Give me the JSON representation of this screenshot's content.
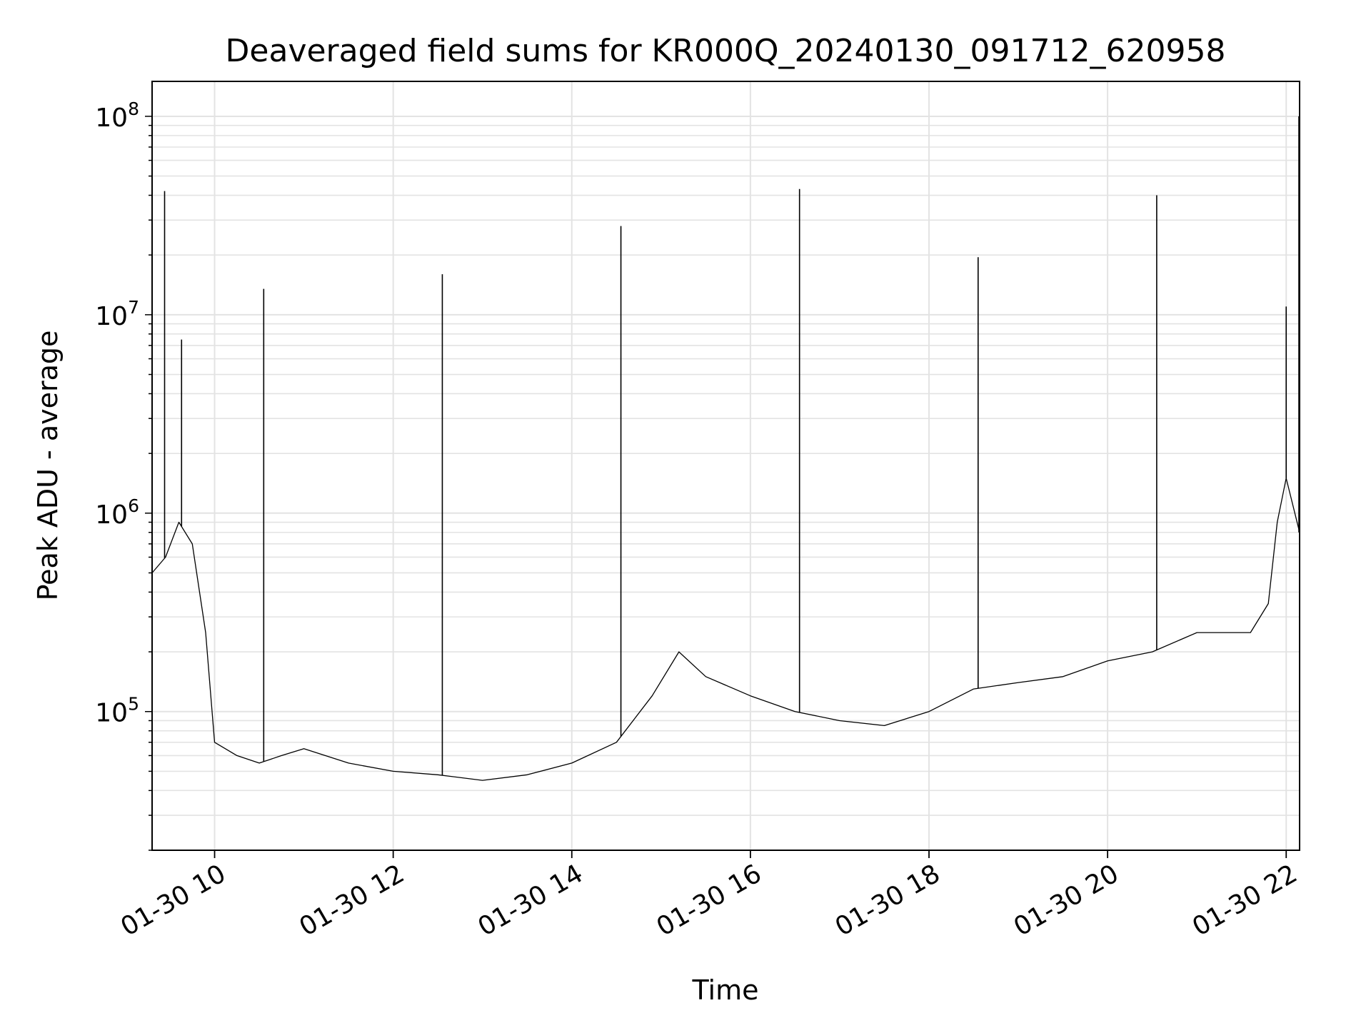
{
  "chart_data": {
    "type": "line",
    "title": "Deaveraged field sums for KR000Q_20240130_091712_620958",
    "xlabel": "Time",
    "ylabel": "Peak ADU - average",
    "x_range_hours": [
      9.3,
      22.15
    ],
    "yscale": "log",
    "ylim": [
      20000,
      150000000
    ],
    "x_ticks": [
      {
        "hour": 10,
        "label": "01-30 10"
      },
      {
        "hour": 12,
        "label": "01-30 12"
      },
      {
        "hour": 14,
        "label": "01-30 14"
      },
      {
        "hour": 16,
        "label": "01-30 16"
      },
      {
        "hour": 18,
        "label": "01-30 18"
      },
      {
        "hour": 20,
        "label": "01-30 20"
      },
      {
        "hour": 22,
        "label": "01-30 22"
      }
    ],
    "y_ticks": [
      {
        "value": 100000,
        "base": "10",
        "exp": "5"
      },
      {
        "value": 1000000,
        "base": "10",
        "exp": "6"
      },
      {
        "value": 10000000,
        "base": "10",
        "exp": "7"
      },
      {
        "value": 100000000,
        "base": "10",
        "exp": "8"
      }
    ],
    "grid": true,
    "line_color": "#000000",
    "series": [
      {
        "x": [
          9.3,
          9.45,
          9.6,
          9.75,
          9.9,
          10.0,
          10.25,
          10.5,
          10.75,
          11.0,
          11.5,
          12.0,
          12.5,
          13.0,
          13.5,
          14.0,
          14.5,
          14.9,
          15.2,
          15.5,
          16.0,
          16.5,
          17.0,
          17.5,
          18.0,
          18.5,
          19.0,
          19.5,
          20.0,
          20.5,
          21.0,
          21.3,
          21.6,
          21.8,
          21.9,
          22.0,
          22.15
        ],
        "y": [
          500000,
          600000,
          900000,
          700000,
          250000,
          70000,
          60000,
          55000,
          60000,
          65000,
          55000,
          50000,
          48000,
          45000,
          48000,
          55000,
          70000,
          120000,
          200000,
          150000,
          120000,
          100000,
          90000,
          85000,
          100000,
          130000,
          140000,
          150000,
          180000,
          200000,
          250000,
          250000,
          250000,
          350000,
          900000,
          1500000,
          800000
        ]
      }
    ],
    "spikes": [
      {
        "x": 9.44,
        "y": 42000000
      },
      {
        "x": 9.63,
        "y": 7500000
      },
      {
        "x": 10.55,
        "y": 13500000
      },
      {
        "x": 12.55,
        "y": 16000000
      },
      {
        "x": 14.55,
        "y": 28000000
      },
      {
        "x": 16.55,
        "y": 43000000
      },
      {
        "x": 18.55,
        "y": 19500000
      },
      {
        "x": 20.55,
        "y": 40000000
      },
      {
        "x": 22.0,
        "y": 11000000
      },
      {
        "x": 22.15,
        "y": 100000000
      }
    ]
  }
}
